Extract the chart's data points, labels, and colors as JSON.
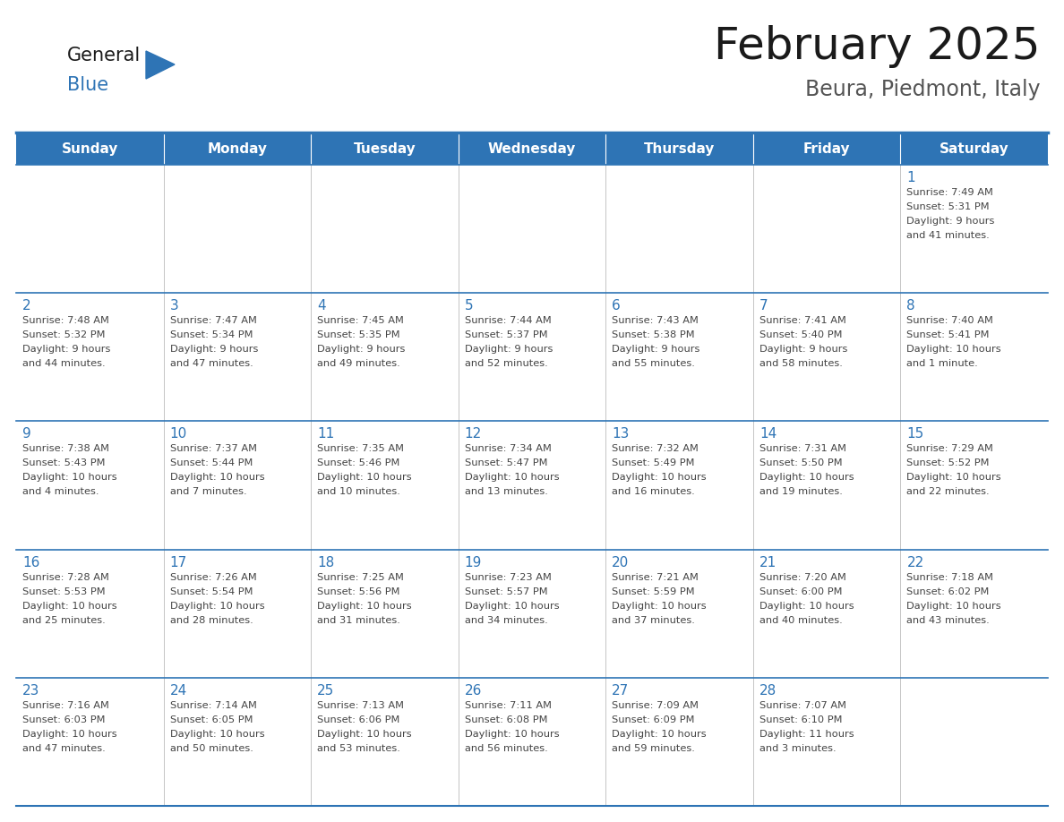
{
  "title": "February 2025",
  "subtitle": "Beura, Piedmont, Italy",
  "header_bg": "#2E74B5",
  "header_text_color": "#FFFFFF",
  "border_color": "#2E74B5",
  "cell_separator_color": "#3B5998",
  "day_number_color": "#2E74B5",
  "cell_text_color": "#444444",
  "days_of_week": [
    "Sunday",
    "Monday",
    "Tuesday",
    "Wednesday",
    "Thursday",
    "Friday",
    "Saturday"
  ],
  "logo_general_color": "#1a1a1a",
  "logo_blue_color": "#2E74B5",
  "title_color": "#1a1a1a",
  "subtitle_color": "#555555",
  "weeks": [
    [
      {
        "day": "",
        "info": ""
      },
      {
        "day": "",
        "info": ""
      },
      {
        "day": "",
        "info": ""
      },
      {
        "day": "",
        "info": ""
      },
      {
        "day": "",
        "info": ""
      },
      {
        "day": "",
        "info": ""
      },
      {
        "day": "1",
        "info": "Sunrise: 7:49 AM\nSunset: 5:31 PM\nDaylight: 9 hours\nand 41 minutes."
      }
    ],
    [
      {
        "day": "2",
        "info": "Sunrise: 7:48 AM\nSunset: 5:32 PM\nDaylight: 9 hours\nand 44 minutes."
      },
      {
        "day": "3",
        "info": "Sunrise: 7:47 AM\nSunset: 5:34 PM\nDaylight: 9 hours\nand 47 minutes."
      },
      {
        "day": "4",
        "info": "Sunrise: 7:45 AM\nSunset: 5:35 PM\nDaylight: 9 hours\nand 49 minutes."
      },
      {
        "day": "5",
        "info": "Sunrise: 7:44 AM\nSunset: 5:37 PM\nDaylight: 9 hours\nand 52 minutes."
      },
      {
        "day": "6",
        "info": "Sunrise: 7:43 AM\nSunset: 5:38 PM\nDaylight: 9 hours\nand 55 minutes."
      },
      {
        "day": "7",
        "info": "Sunrise: 7:41 AM\nSunset: 5:40 PM\nDaylight: 9 hours\nand 58 minutes."
      },
      {
        "day": "8",
        "info": "Sunrise: 7:40 AM\nSunset: 5:41 PM\nDaylight: 10 hours\nand 1 minute."
      }
    ],
    [
      {
        "day": "9",
        "info": "Sunrise: 7:38 AM\nSunset: 5:43 PM\nDaylight: 10 hours\nand 4 minutes."
      },
      {
        "day": "10",
        "info": "Sunrise: 7:37 AM\nSunset: 5:44 PM\nDaylight: 10 hours\nand 7 minutes."
      },
      {
        "day": "11",
        "info": "Sunrise: 7:35 AM\nSunset: 5:46 PM\nDaylight: 10 hours\nand 10 minutes."
      },
      {
        "day": "12",
        "info": "Sunrise: 7:34 AM\nSunset: 5:47 PM\nDaylight: 10 hours\nand 13 minutes."
      },
      {
        "day": "13",
        "info": "Sunrise: 7:32 AM\nSunset: 5:49 PM\nDaylight: 10 hours\nand 16 minutes."
      },
      {
        "day": "14",
        "info": "Sunrise: 7:31 AM\nSunset: 5:50 PM\nDaylight: 10 hours\nand 19 minutes."
      },
      {
        "day": "15",
        "info": "Sunrise: 7:29 AM\nSunset: 5:52 PM\nDaylight: 10 hours\nand 22 minutes."
      }
    ],
    [
      {
        "day": "16",
        "info": "Sunrise: 7:28 AM\nSunset: 5:53 PM\nDaylight: 10 hours\nand 25 minutes."
      },
      {
        "day": "17",
        "info": "Sunrise: 7:26 AM\nSunset: 5:54 PM\nDaylight: 10 hours\nand 28 minutes."
      },
      {
        "day": "18",
        "info": "Sunrise: 7:25 AM\nSunset: 5:56 PM\nDaylight: 10 hours\nand 31 minutes."
      },
      {
        "day": "19",
        "info": "Sunrise: 7:23 AM\nSunset: 5:57 PM\nDaylight: 10 hours\nand 34 minutes."
      },
      {
        "day": "20",
        "info": "Sunrise: 7:21 AM\nSunset: 5:59 PM\nDaylight: 10 hours\nand 37 minutes."
      },
      {
        "day": "21",
        "info": "Sunrise: 7:20 AM\nSunset: 6:00 PM\nDaylight: 10 hours\nand 40 minutes."
      },
      {
        "day": "22",
        "info": "Sunrise: 7:18 AM\nSunset: 6:02 PM\nDaylight: 10 hours\nand 43 minutes."
      }
    ],
    [
      {
        "day": "23",
        "info": "Sunrise: 7:16 AM\nSunset: 6:03 PM\nDaylight: 10 hours\nand 47 minutes."
      },
      {
        "day": "24",
        "info": "Sunrise: 7:14 AM\nSunset: 6:05 PM\nDaylight: 10 hours\nand 50 minutes."
      },
      {
        "day": "25",
        "info": "Sunrise: 7:13 AM\nSunset: 6:06 PM\nDaylight: 10 hours\nand 53 minutes."
      },
      {
        "day": "26",
        "info": "Sunrise: 7:11 AM\nSunset: 6:08 PM\nDaylight: 10 hours\nand 56 minutes."
      },
      {
        "day": "27",
        "info": "Sunrise: 7:09 AM\nSunset: 6:09 PM\nDaylight: 10 hours\nand 59 minutes."
      },
      {
        "day": "28",
        "info": "Sunrise: 7:07 AM\nSunset: 6:10 PM\nDaylight: 11 hours\nand 3 minutes."
      },
      {
        "day": "",
        "info": ""
      }
    ]
  ],
  "fig_width": 11.88,
  "fig_height": 9.18,
  "dpi": 100
}
